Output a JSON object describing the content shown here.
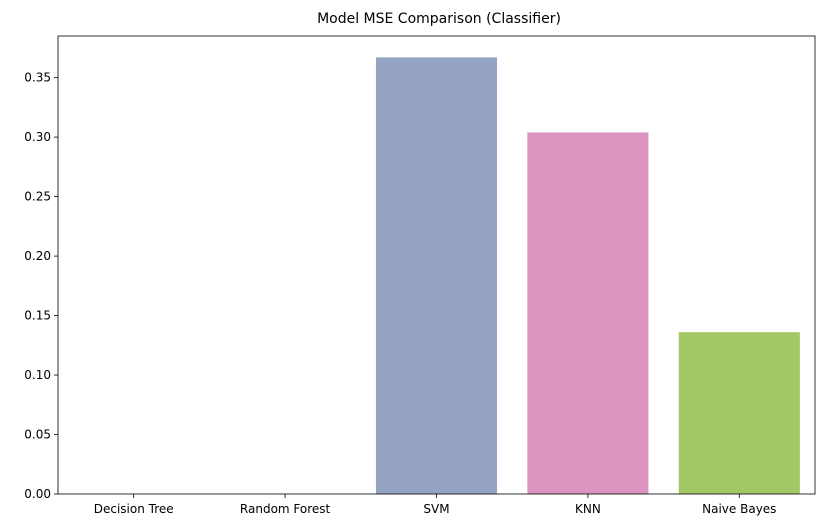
{
  "chart_data": {
    "type": "bar",
    "title": "Model MSE Comparison (Classifier)",
    "xlabel": "",
    "ylabel": "",
    "categories": [
      "Decision Tree",
      "Random Forest",
      "SVM",
      "KNN",
      "Naive Bayes"
    ],
    "values": [
      0.0,
      0.0,
      0.367,
      0.304,
      0.136
    ],
    "colors": [
      "#66c2a5",
      "#fc8d62",
      "#95a4c2",
      "#db95c0",
      "#a2c866"
    ],
    "ylim": [
      0,
      0.385
    ],
    "yticks": [
      0.0,
      0.05,
      0.1,
      0.15,
      0.2,
      0.25,
      0.3,
      0.35
    ],
    "ytick_labels": [
      "0.00",
      "0.05",
      "0.10",
      "0.15",
      "0.20",
      "0.25",
      "0.30",
      "0.35"
    ],
    "grid": false,
    "legend": "none"
  }
}
